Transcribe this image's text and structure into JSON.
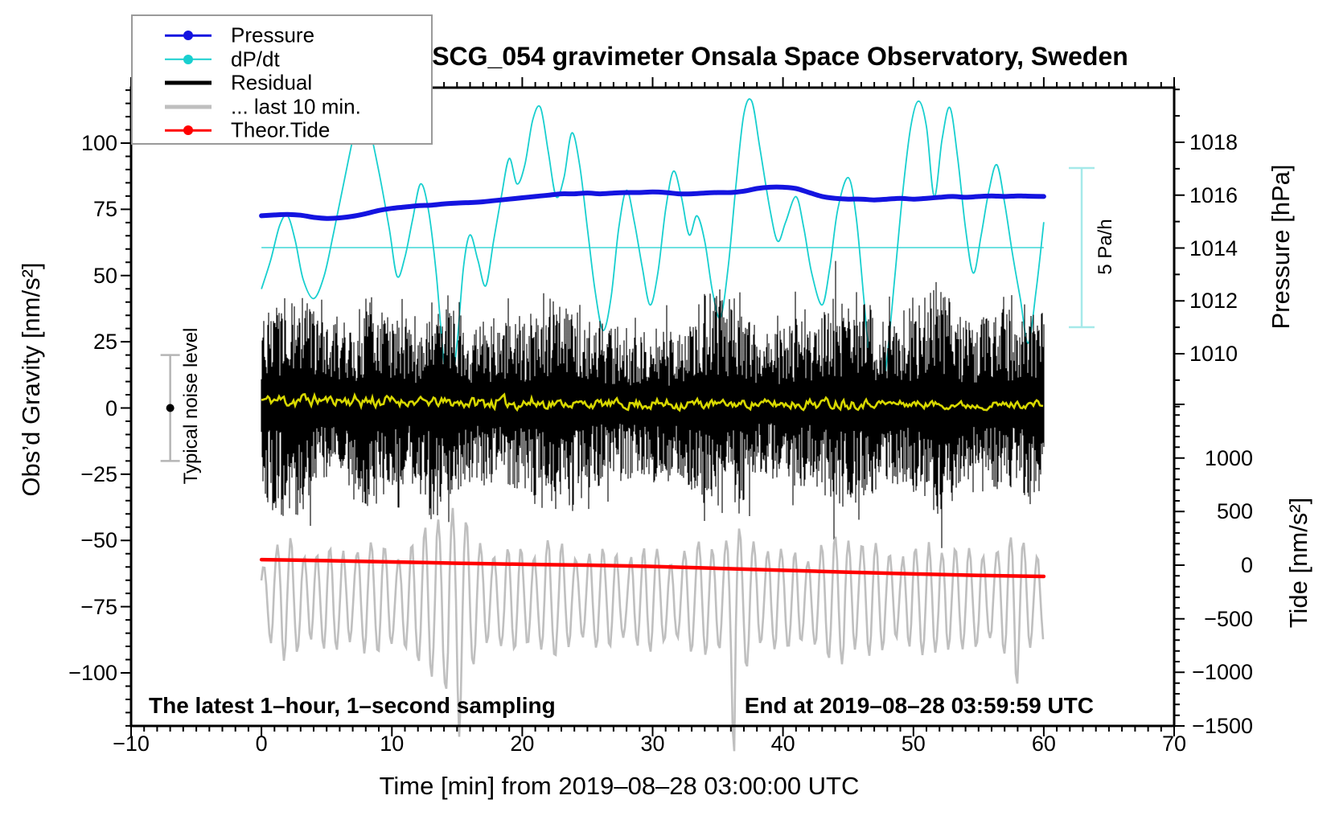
{
  "chart_data": {
    "type": "line",
    "title": "SCG_054 gravimeter Onsala Space Observatory, Sweden",
    "xlabel": "Time [min] from 2019–08–28 03:00:00 UTC",
    "grid": false,
    "x_axis": {
      "range": [
        -10,
        70
      ],
      "major_tick_step": 10,
      "minor_tick_step": 1,
      "ticks": [
        {
          "v": -10,
          "label": "−10"
        },
        {
          "v": 0,
          "label": "0"
        },
        {
          "v": 10,
          "label": "10"
        },
        {
          "v": 20,
          "label": "20"
        },
        {
          "v": 30,
          "label": "30"
        },
        {
          "v": 40,
          "label": "40"
        },
        {
          "v": 50,
          "label": "50"
        },
        {
          "v": 60,
          "label": "60"
        },
        {
          "v": 70,
          "label": "70"
        }
      ]
    },
    "gravity_axis": {
      "label": "Obs’d Gravity [nm/s²]",
      "range": [
        -121,
        121
      ],
      "minor_tick_step": 5,
      "ticks": [
        {
          "v": 100,
          "label": "100"
        },
        {
          "v": 75,
          "label": "75"
        },
        {
          "v": 50,
          "label": "50"
        },
        {
          "v": 25,
          "label": "25"
        },
        {
          "v": 0,
          "label": "0"
        },
        {
          "v": -25,
          "label": "−25"
        },
        {
          "v": -50,
          "label": "−50"
        },
        {
          "v": -75,
          "label": "−75"
        },
        {
          "v": -100,
          "label": "−100"
        }
      ]
    },
    "pressure_axis": {
      "label": "Pressure [hPa]",
      "minor_tick_step": 1,
      "ticks": [
        {
          "v": 1018,
          "label": "1018"
        },
        {
          "v": 1016,
          "label": "1016"
        },
        {
          "v": 1014,
          "label": "1014"
        },
        {
          "v": 1012,
          "label": "1012"
        },
        {
          "v": 1010,
          "label": "1010"
        }
      ]
    },
    "tide_axis": {
      "label": "Tide [nm/s²]",
      "minor_tick_step": 100,
      "ticks": [
        {
          "v": 1000,
          "label": "1000"
        },
        {
          "v": 500,
          "label": "500"
        },
        {
          "v": 0,
          "label": "0"
        },
        {
          "v": -500,
          "label": "−500"
        },
        {
          "v": -1000,
          "label": "−1000"
        },
        {
          "v": -1500,
          "label": "−1500"
        }
      ]
    },
    "annotations": {
      "sampling_note": "The latest 1–hour, 1–second sampling",
      "end_note": "End at 2019–08–28 03:59:59 UTC",
      "noise_bar_label": "Typical noise level",
      "scale_bar_label": "5 Pa/h"
    },
    "legend": {
      "items": [
        {
          "name": "pressure",
          "label": "Pressure",
          "color": "#1414e0",
          "thick": false,
          "marker": true
        },
        {
          "name": "dpdt",
          "label": "dP/dt",
          "color": "#18cfcf",
          "thick": false,
          "marker": true
        },
        {
          "name": "residual",
          "label": "Residual",
          "color": "#000000",
          "thick": true,
          "marker": false
        },
        {
          "name": "last10",
          "label": "... last 10 min.",
          "color": "#bfbfbf",
          "thick": true,
          "marker": false
        },
        {
          "name": "tide",
          "label": "Theor.Tide",
          "color": "#ff0000",
          "thick": false,
          "marker": true
        }
      ]
    },
    "series": {
      "pressure": {
        "name": "Pressure",
        "color": "#1414e0",
        "unit": "hPa",
        "t_start": 0,
        "t_step": 1,
        "values": [
          1015.22,
          1015.25,
          1015.27,
          1015.24,
          1015.16,
          1015.12,
          1015.14,
          1015.2,
          1015.3,
          1015.42,
          1015.5,
          1015.55,
          1015.6,
          1015.62,
          1015.67,
          1015.7,
          1015.72,
          1015.75,
          1015.8,
          1015.85,
          1015.9,
          1015.95,
          1016.0,
          1016.05,
          1016.05,
          1016.08,
          1016.05,
          1016.08,
          1016.1,
          1016.1,
          1016.12,
          1016.1,
          1016.05,
          1016.05,
          1016.08,
          1016.1,
          1016.1,
          1016.15,
          1016.25,
          1016.3,
          1016.3,
          1016.25,
          1016.1,
          1015.95,
          1015.88,
          1015.85,
          1015.85,
          1015.82,
          1015.85,
          1015.88,
          1015.85,
          1015.88,
          1015.92,
          1015.95,
          1015.92,
          1015.95,
          1015.97,
          1015.95,
          1015.97,
          1015.96,
          1015.95
        ]
      },
      "dpdt": {
        "name": "dP/dt",
        "color": "#18cfcf",
        "unit": "Pa/h",
        "zero_line": true,
        "scale_bar": {
          "value": 5,
          "label": "5 Pa/h",
          "color": "#a5e9e9"
        },
        "points": [
          [
            0,
            -1.3
          ],
          [
            0.7,
            -0.4
          ],
          [
            1.4,
            0.7
          ],
          [
            2,
            1
          ],
          [
            2.6,
            0.2
          ],
          [
            3.2,
            -1
          ],
          [
            4,
            -1.6
          ],
          [
            4.8,
            -0.9
          ],
          [
            5.5,
            0.4
          ],
          [
            6.2,
            1.8
          ],
          [
            7,
            3.4
          ],
          [
            7.6,
            4.4
          ],
          [
            8.2,
            3.9
          ],
          [
            9,
            2.4
          ],
          [
            9.8,
            0.6
          ],
          [
            10.4,
            -0.9
          ],
          [
            11,
            -0.3
          ],
          [
            11.6,
            0.9
          ],
          [
            12.2,
            2
          ],
          [
            12.8,
            1.2
          ],
          [
            13.4,
            -0.8
          ],
          [
            13.9,
            -3.2
          ],
          [
            14.4,
            -4.8
          ],
          [
            15,
            -3
          ],
          [
            15.5,
            -0.6
          ],
          [
            16,
            0.4
          ],
          [
            16.6,
            -0.4
          ],
          [
            17.2,
            -1.2
          ],
          [
            17.8,
            0.2
          ],
          [
            18.4,
            1.6
          ],
          [
            19,
            2.8
          ],
          [
            19.6,
            2
          ],
          [
            20.2,
            2.6
          ],
          [
            20.8,
            4
          ],
          [
            21.4,
            4.4
          ],
          [
            22,
            3
          ],
          [
            22.6,
            1.6
          ],
          [
            23.2,
            2.2
          ],
          [
            23.8,
            3.6
          ],
          [
            24.4,
            2.6
          ],
          [
            25,
            0.6
          ],
          [
            25.6,
            -1.4
          ],
          [
            26.2,
            -2.6
          ],
          [
            26.8,
            -1.6
          ],
          [
            27.4,
            0.6
          ],
          [
            28,
            1.8
          ],
          [
            28.6,
            0.8
          ],
          [
            29.2,
            -0.6
          ],
          [
            29.8,
            -1.8
          ],
          [
            30.4,
            -0.8
          ],
          [
            31,
            1.2
          ],
          [
            31.6,
            2.4
          ],
          [
            32.2,
            1.6
          ],
          [
            32.8,
            0.4
          ],
          [
            33.4,
            1
          ],
          [
            34,
            0.2
          ],
          [
            34.6,
            -1.4
          ],
          [
            35.2,
            -2.2
          ],
          [
            35.8,
            -0.6
          ],
          [
            36.4,
            2
          ],
          [
            37,
            4.2
          ],
          [
            37.6,
            4.6
          ],
          [
            38.2,
            3.2
          ],
          [
            39,
            1.2
          ],
          [
            39.6,
            0.2
          ],
          [
            40.2,
            0.8
          ],
          [
            41,
            1.6
          ],
          [
            41.6,
            0.6
          ],
          [
            42.2,
            -0.8
          ],
          [
            43,
            -1.8
          ],
          [
            43.6,
            -0.6
          ],
          [
            44.2,
            1.2
          ],
          [
            45,
            2.2
          ],
          [
            45.6,
            1
          ],
          [
            46.2,
            -1.6
          ],
          [
            46.8,
            -4.2
          ],
          [
            47.4,
            -5.2
          ],
          [
            48,
            -3.4
          ],
          [
            48.6,
            -0.8
          ],
          [
            49.2,
            1.8
          ],
          [
            49.8,
            3.8
          ],
          [
            50.4,
            4.6
          ],
          [
            51,
            3.8
          ],
          [
            51.6,
            1.6
          ],
          [
            52.2,
            3.4
          ],
          [
            52.8,
            4.4
          ],
          [
            53.4,
            2.8
          ],
          [
            54,
            0.6
          ],
          [
            54.6,
            -0.8
          ],
          [
            55.2,
            0.4
          ],
          [
            55.8,
            1.8
          ],
          [
            56.4,
            2.6
          ],
          [
            57,
            1.4
          ],
          [
            57.6,
            -0.2
          ],
          [
            58.2,
            -1.6
          ],
          [
            58.8,
            -3
          ],
          [
            59.4,
            -1.4
          ],
          [
            60,
            0.8
          ]
        ]
      },
      "residual": {
        "name": "Residual",
        "color": "#000000",
        "unit": "nm/s²",
        "mean": 1,
        "seed": 7,
        "amplitude_keypoints": [
          [
            0,
            38
          ],
          [
            1,
            42
          ],
          [
            2,
            46
          ],
          [
            3,
            44
          ],
          [
            4,
            36
          ],
          [
            5,
            32
          ],
          [
            6,
            30
          ],
          [
            7,
            34
          ],
          [
            8,
            42
          ],
          [
            9,
            40
          ],
          [
            10,
            32
          ],
          [
            12,
            34
          ],
          [
            13,
            46
          ],
          [
            14,
            44
          ],
          [
            15,
            36
          ],
          [
            16,
            32
          ],
          [
            18,
            33
          ],
          [
            20,
            34
          ],
          [
            21,
            40
          ],
          [
            22,
            44
          ],
          [
            24,
            40
          ],
          [
            25,
            36
          ],
          [
            26,
            32
          ],
          [
            28,
            30
          ],
          [
            29,
            28
          ],
          [
            30,
            32
          ],
          [
            32,
            28
          ],
          [
            33,
            34
          ],
          [
            34,
            44
          ],
          [
            35,
            46
          ],
          [
            36,
            42
          ],
          [
            37,
            38
          ],
          [
            38,
            30
          ],
          [
            40,
            30
          ],
          [
            41,
            34
          ],
          [
            42,
            30
          ],
          [
            43,
            36
          ],
          [
            44,
            44
          ],
          [
            46,
            40
          ],
          [
            47,
            38
          ],
          [
            48,
            32
          ],
          [
            50,
            36
          ],
          [
            51,
            42
          ],
          [
            52,
            46
          ],
          [
            53,
            40
          ],
          [
            54,
            32
          ],
          [
            56,
            34
          ],
          [
            57,
            36
          ],
          [
            58,
            38
          ],
          [
            59,
            40
          ],
          [
            60,
            36
          ]
        ]
      },
      "residual_smoothed": {
        "name": "Residual (smoothed)",
        "color": "#d8d800",
        "unit": "nm/s²",
        "seed": 11,
        "center_keypoints": [
          [
            0,
            3
          ],
          [
            5,
            3
          ],
          [
            10,
            2.5
          ],
          [
            15,
            2
          ],
          [
            20,
            2
          ],
          [
            25,
            1.5
          ],
          [
            30,
            1.5
          ],
          [
            35,
            1.5
          ],
          [
            40,
            1.5
          ],
          [
            45,
            2
          ],
          [
            50,
            1.5
          ],
          [
            55,
            1
          ],
          [
            60,
            1.5
          ]
        ],
        "amplitude_keypoints": [
          [
            0,
            2.5
          ],
          [
            2.5,
            5
          ],
          [
            5,
            2.5
          ],
          [
            8.5,
            4.5
          ],
          [
            11,
            2.5
          ],
          [
            21,
            4
          ],
          [
            23,
            2.2
          ],
          [
            33,
            3.5
          ],
          [
            35,
            2.2
          ],
          [
            45,
            3.5
          ],
          [
            47,
            2.2
          ],
          [
            60,
            2.2
          ]
        ]
      },
      "last10": {
        "name": "... last 10 min.",
        "color": "#bfbfbf",
        "unit": "nm/s² (gravity scale)",
        "center": -72,
        "seed": 23,
        "amplitude_keypoints": [
          [
            0,
            14
          ],
          [
            2,
            22
          ],
          [
            4,
            17
          ],
          [
            6,
            18
          ],
          [
            8,
            20
          ],
          [
            10,
            18
          ],
          [
            12,
            21
          ],
          [
            13,
            28
          ],
          [
            14,
            36
          ],
          [
            15,
            34
          ],
          [
            16,
            24
          ],
          [
            18,
            17
          ],
          [
            20,
            18
          ],
          [
            22,
            21
          ],
          [
            24,
            17
          ],
          [
            26,
            17
          ],
          [
            28,
            17
          ],
          [
            30,
            18
          ],
          [
            32,
            16
          ],
          [
            34,
            21
          ],
          [
            36,
            22
          ],
          [
            37,
            25
          ],
          [
            38,
            21
          ],
          [
            40,
            17
          ],
          [
            42,
            17
          ],
          [
            44,
            22
          ],
          [
            45,
            24
          ],
          [
            46,
            21
          ],
          [
            48,
            17
          ],
          [
            50,
            18
          ],
          [
            52,
            21
          ],
          [
            54,
            17
          ],
          [
            56,
            18
          ],
          [
            58,
            22
          ],
          [
            60,
            18
          ]
        ],
        "spikes": [
          [
            13.6,
            0.5
          ],
          [
            14.4,
            0.65
          ],
          [
            15.2,
            0.5
          ],
          [
            34.6,
            1.7
          ],
          [
            36.3,
            1.75
          ],
          [
            44.9,
            0.9
          ],
          [
            52.4,
            0.5
          ],
          [
            57.8,
            0.6
          ]
        ]
      },
      "tide": {
        "name": "Theor.Tide",
        "color": "#ff0000",
        "unit": "nm/s²",
        "points": [
          [
            0,
            52
          ],
          [
            5,
            42
          ],
          [
            10,
            30
          ],
          [
            15,
            18
          ],
          [
            20,
            8
          ],
          [
            25,
            0
          ],
          [
            30,
            -12
          ],
          [
            35,
            -30
          ],
          [
            40,
            -48
          ],
          [
            45,
            -65
          ],
          [
            50,
            -82
          ],
          [
            55,
            -95
          ],
          [
            60,
            -105
          ]
        ]
      },
      "noise_bar": {
        "label": "Typical noise level",
        "center": 0,
        "half_range": 20,
        "t": -7,
        "bar_color": "#b5b5b5",
        "dot_color": "#000000"
      }
    }
  }
}
